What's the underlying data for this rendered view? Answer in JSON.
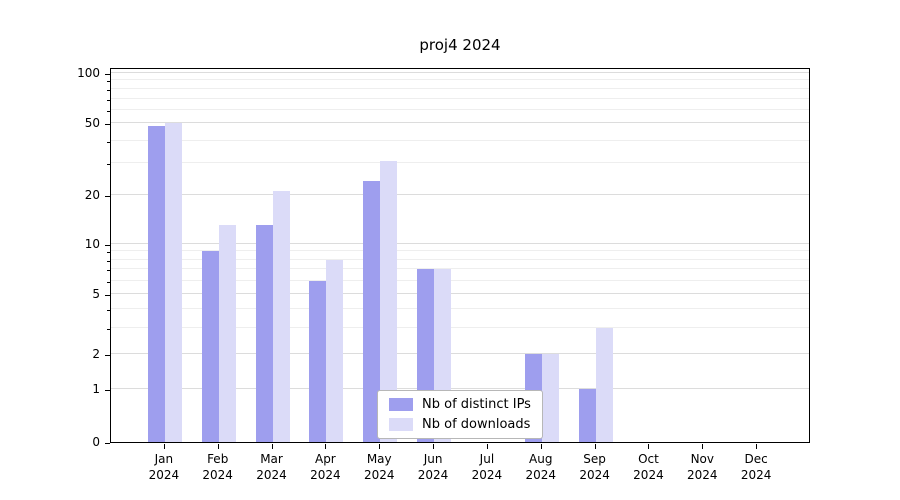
{
  "title": "proj4 2024",
  "chart_data": {
    "type": "bar",
    "title": "proj4 2024",
    "scale": "symlog",
    "ylim": [
      0,
      100
    ],
    "yticks": [
      0,
      1,
      2,
      5,
      10,
      20,
      50,
      100
    ],
    "minor_yticks": [
      3,
      4,
      6,
      7,
      8,
      9,
      30,
      40,
      60,
      70,
      80,
      90
    ],
    "grid": true,
    "legend_position": "lower center",
    "year": "2024",
    "categories": [
      "Jan",
      "Feb",
      "Mar",
      "Apr",
      "May",
      "Jun",
      "Jul",
      "Aug",
      "Sep",
      "Oct",
      "Nov",
      "Dec"
    ],
    "series": [
      {
        "name": "Nb of distinct IPs",
        "color": "#9e9eee",
        "values": [
          48,
          9,
          13,
          6,
          24,
          7,
          0,
          2,
          1,
          0,
          0,
          0
        ]
      },
      {
        "name": "Nb of downloads",
        "color": "#dbdbf8",
        "values": [
          50,
          13,
          21,
          8,
          31,
          7,
          0,
          2,
          3,
          0,
          0,
          0
        ]
      }
    ]
  }
}
